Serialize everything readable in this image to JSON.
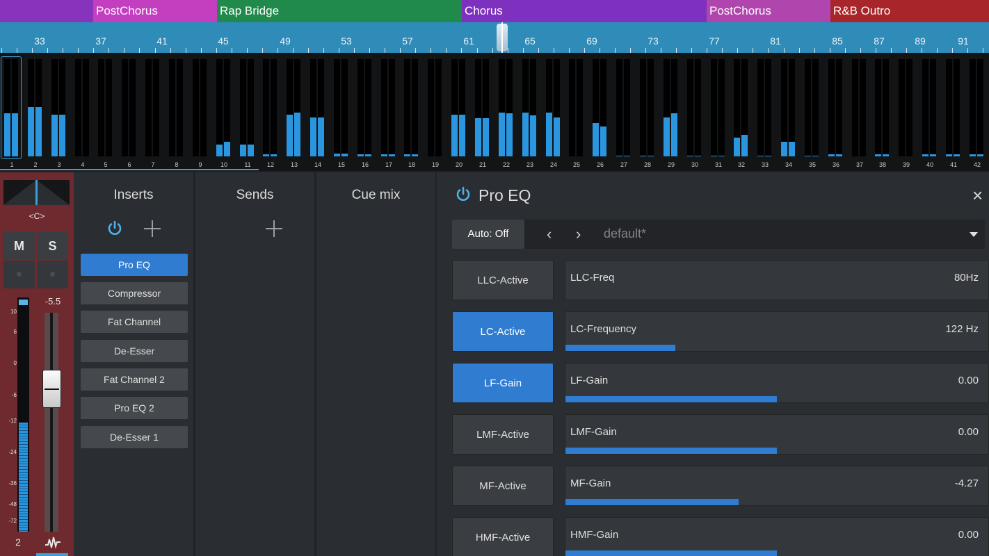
{
  "sections": [
    {
      "label": "",
      "color": "#8833bb"
    },
    {
      "label": "PostChorus",
      "color": "#c33fc0"
    },
    {
      "label": "Rap Bridge",
      "color": "#1f8a4c"
    },
    {
      "label": "Chorus",
      "color": "#7e31be"
    },
    {
      "label": "PostChorus",
      "color": "#b046ad"
    },
    {
      "label": "R&B Outro",
      "color": "#a8262a"
    }
  ],
  "ruler_labels": [
    "33",
    "37",
    "41",
    "45",
    "49",
    "53",
    "57",
    "61",
    "65",
    "69",
    "73",
    "77",
    "81",
    "85",
    "87",
    "89",
    "91"
  ],
  "channels": {
    "numbers": [
      "1",
      "2",
      "3",
      "4",
      "5",
      "6",
      "7",
      "8",
      "9",
      "10",
      "11",
      "12",
      "13",
      "14",
      "15",
      "16",
      "17",
      "18",
      "19",
      "20",
      "21",
      "22",
      "23",
      "24",
      "25",
      "26",
      "27",
      "28",
      "29",
      "30",
      "31",
      "32",
      "33",
      "34",
      "35",
      "36",
      "37",
      "38",
      "39",
      "40",
      "41",
      "42"
    ],
    "levels": [
      [
        0.44,
        0.44
      ],
      [
        0.51,
        0.51
      ],
      [
        0.43,
        0.43
      ],
      [
        0,
        0
      ],
      [
        0,
        0
      ],
      [
        0,
        0
      ],
      [
        0,
        0
      ],
      [
        0,
        0
      ],
      [
        0,
        0
      ],
      [
        0.12,
        0.15
      ],
      [
        0.12,
        0.12
      ],
      [
        0.02,
        0.02
      ],
      [
        0.43,
        0.45
      ],
      [
        0.4,
        0.4
      ],
      [
        0.03,
        0.03
      ],
      [
        0.02,
        0.02
      ],
      [
        0.02,
        0.02
      ],
      [
        0.02,
        0.02
      ],
      [
        0,
        0
      ],
      [
        0.43,
        0.43
      ],
      [
        0.39,
        0.39
      ],
      [
        0.45,
        0.44
      ],
      [
        0.45,
        0.42
      ],
      [
        0.45,
        0.4
      ],
      [
        0,
        0
      ],
      [
        0.34,
        0.31
      ],
      [
        0.01,
        0.01
      ],
      [
        0.01,
        0.01
      ],
      [
        0.4,
        0.44
      ],
      [
        0.01,
        0.01
      ],
      [
        0.01,
        0.01
      ],
      [
        0.19,
        0.22
      ],
      [
        0.01,
        0.01
      ],
      [
        0.15,
        0.15
      ],
      [
        0.01,
        0.01
      ],
      [
        0.02,
        0.02
      ],
      [
        0,
        0
      ],
      [
        0.02,
        0.02
      ],
      [
        0,
        0
      ],
      [
        0.02,
        0.02
      ],
      [
        0.02,
        0.02
      ],
      [
        0.02,
        0.02
      ]
    ],
    "selected": "1"
  },
  "strip": {
    "pan_label": "<C>",
    "mute_label": "M",
    "solo_label": "S",
    "volume_readout": "-5.5",
    "meter_scale": [
      "10",
      "6",
      "0",
      "-6",
      "-12",
      "-24",
      "-36",
      "-48",
      "-72"
    ],
    "meter_level": 0.49,
    "channel_number": "2",
    "color": "#6e2a2e"
  },
  "inserts": {
    "title": "Inserts",
    "items": [
      "Pro EQ",
      "Compressor",
      "Fat Channel",
      "De-Esser",
      "Fat Channel 2",
      "Pro EQ 2",
      "De-Esser 1"
    ],
    "active_index": 0
  },
  "sends": {
    "title": "Sends"
  },
  "cue": {
    "title": "Cue mix"
  },
  "eq": {
    "title": "Pro EQ",
    "close_symbol": "×",
    "auto_label": "Auto: Off",
    "prev_symbol": "‹",
    "next_symbol": "›",
    "preset": "default*",
    "rows": [
      {
        "button": "LLC-Active",
        "on": false,
        "param": "LLC-Freq",
        "value": "80Hz",
        "fill": 0
      },
      {
        "button": "LC-Active",
        "on": true,
        "param": "LC-Frequency",
        "value": "122 Hz",
        "fill": 0.26
      },
      {
        "button": "LF-Gain",
        "on": true,
        "param": "LF-Gain",
        "value": "0.00",
        "fill": 0.5
      },
      {
        "button": "LMF-Active",
        "on": false,
        "param": "LMF-Gain",
        "value": "0.00",
        "fill": 0.5
      },
      {
        "button": "MF-Active",
        "on": false,
        "param": "MF-Gain",
        "value": "-4.27",
        "fill": 0.41
      },
      {
        "button": "HMF-Active",
        "on": false,
        "param": "HMF-Gain",
        "value": "0.00",
        "fill": 0.5
      }
    ],
    "accent": "#2f7cd0"
  }
}
